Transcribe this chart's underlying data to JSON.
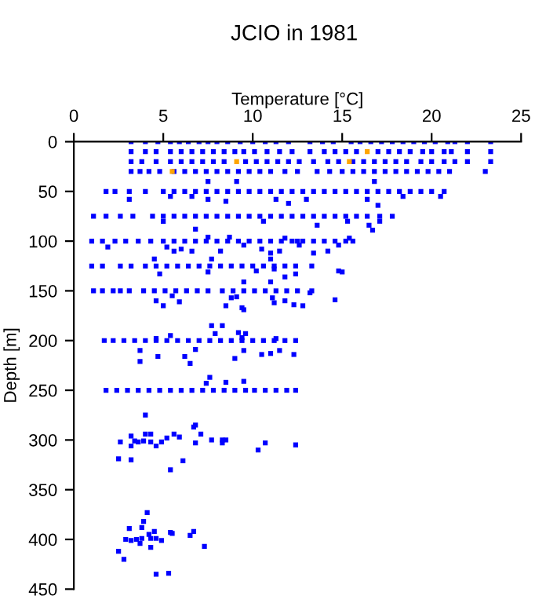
{
  "chart_data": {
    "type": "scatter",
    "title": "JCIO in 1981",
    "xlabel": "Temperature [°C]",
    "ylabel": "Depth [m]",
    "xlim": [
      0,
      25
    ],
    "xticks": [
      0,
      5,
      10,
      15,
      20,
      25
    ],
    "ylim": [
      450,
      0
    ],
    "yticks": [
      0,
      50,
      100,
      150,
      200,
      250,
      300,
      350,
      400,
      450
    ],
    "grid": false,
    "marker": "square",
    "series": [
      {
        "color": "#0000ff",
        "x": [
          3.2,
          4.0,
          4.7,
          5.4,
          5.9,
          6.4,
          7.0,
          7.5,
          8.0,
          8.6,
          9.3,
          10.0,
          10.7,
          11.3,
          12.0,
          13.2,
          13.9,
          14.5,
          15.5,
          16.0,
          16.6,
          17.2,
          17.8,
          18.4,
          19.0,
          19.6,
          20.2,
          20.9,
          21.3,
          22.0,
          23.3,
          3.2,
          4.0,
          4.6,
          5.4,
          6.0,
          6.6,
          7.2,
          7.8,
          8.4,
          9.0,
          9.5,
          10.1,
          10.8,
          11.5,
          12.2,
          13.2,
          14.0,
          14.6,
          15.2,
          15.8,
          17.0,
          17.6,
          18.2,
          18.8,
          19.5,
          20.0,
          20.7,
          21.1,
          22.0,
          23.3,
          3.2,
          3.8,
          4.6,
          5.4,
          6.0,
          6.6,
          7.2,
          7.8,
          8.4,
          9.6,
          10.2,
          10.8,
          11.4,
          12.0,
          12.6,
          13.4,
          14.2,
          14.8,
          15.6,
          16.2,
          16.8,
          17.4,
          18.0,
          18.6,
          19.4,
          20.0,
          20.7,
          21.3,
          22.0,
          23.3,
          3.2,
          3.7,
          4.2,
          4.8,
          5.6,
          6.2,
          6.8,
          7.4,
          8.0,
          8.6,
          9.2,
          9.8,
          10.4,
          11.0,
          11.8,
          12.5,
          13.6,
          14.3,
          15.0,
          15.6,
          16.2,
          16.8,
          17.4,
          18.0,
          18.6,
          19.2,
          19.8,
          20.4,
          21.0,
          23.0,
          7.5,
          9.1,
          16.8,
          1.8,
          2.3,
          3.1,
          4.0,
          5.0,
          5.6,
          6.2,
          6.8,
          7.4,
          8.0,
          8.6,
          9.2,
          9.8,
          10.4,
          11.0,
          11.6,
          12.2,
          12.8,
          13.4,
          14.0,
          14.6,
          15.2,
          15.8,
          16.4,
          17.0,
          17.6,
          18.2,
          18.8,
          19.4,
          20.0,
          20.7,
          3.1,
          5.4,
          6.6,
          8.5,
          7.5,
          11.3,
          13.0,
          12.0,
          16.4,
          17.0,
          18.4,
          20.5,
          1.1,
          1.8,
          2.6,
          3.3,
          4.4,
          5.0,
          5.6,
          6.2,
          6.8,
          7.4,
          8.0,
          8.6,
          9.2,
          9.8,
          10.4,
          11.0,
          11.6,
          12.2,
          12.8,
          13.4,
          14.0,
          14.6,
          15.2,
          15.8,
          16.4,
          17.1,
          17.8,
          5.0,
          6.8,
          10.6,
          13.6,
          15.3,
          16.5,
          16.7,
          17.1,
          1.0,
          1.6,
          2.3,
          2.9,
          3.6,
          4.3,
          5.0,
          5.6,
          6.2,
          6.8,
          7.4,
          8.0,
          8.6,
          9.2,
          9.8,
          10.4,
          11.0,
          11.6,
          12.2,
          12.8,
          13.4,
          14.0,
          14.6,
          15.2,
          15.6,
          1.9,
          5.2,
          5.6,
          6.0,
          6.6,
          8.2,
          9.5,
          10.5,
          11.0,
          11.5,
          12.6,
          13.4,
          14.2,
          14.8,
          4.5,
          7.5,
          8.7,
          11.8,
          12.5,
          15.4,
          1.0,
          1.6,
          2.6,
          3.2,
          4.0,
          4.6,
          5.2,
          5.8,
          6.4,
          7.0,
          7.6,
          8.2,
          8.8,
          9.4,
          10.0,
          10.6,
          11.2,
          11.8,
          12.4,
          13.3,
          4.8,
          7.5,
          10.2,
          11.2,
          11.8,
          14.8,
          7.7,
          11.0,
          1.1,
          1.6,
          2.2,
          2.6,
          3.1,
          3.9,
          4.5,
          5.1,
          5.7,
          6.3,
          6.9,
          7.5,
          8.3,
          8.9,
          9.5,
          10.1,
          10.7,
          11.3,
          11.9,
          12.5,
          13.3,
          4.6,
          5.0,
          5.5,
          5.9,
          8.5,
          8.8,
          9.1,
          9.4,
          9.5,
          11.1,
          11.2,
          11.8,
          12.3,
          12.8,
          13.2,
          14.6,
          15.0,
          9.5,
          11.0,
          12.4,
          1.7,
          2.2,
          2.8,
          3.4,
          4.0,
          4.6,
          5.2,
          5.8,
          6.4,
          7.0,
          7.6,
          8.2,
          8.8,
          9.4,
          10.0,
          10.6,
          11.2,
          11.8,
          12.4,
          7.7,
          8.3,
          5.4,
          4.6,
          7.9,
          9.2,
          9.6,
          9.4,
          3.7,
          3.7,
          4.7,
          6.2,
          6.5,
          9.0,
          9.5,
          10.5,
          11.0,
          11.5,
          12.3,
          6.8,
          11.3,
          1.8,
          2.4,
          3.0,
          3.6,
          4.2,
          4.8,
          5.4,
          6.0,
          6.6,
          7.2,
          7.8,
          8.4,
          9.0,
          9.6,
          10.1,
          10.7,
          11.3,
          11.9,
          12.4,
          7.4,
          7.6,
          8.5,
          9.5,
          4.0,
          6.7,
          2.6,
          2.5,
          3.2,
          3.2,
          3.2,
          3.4,
          3.6,
          3.9,
          4.0,
          4.3,
          4.3,
          4.6,
          4.9,
          5.2,
          5.4,
          5.6,
          5.9,
          6.1,
          6.8,
          6.8,
          7.1,
          7.7,
          8.3,
          8.5,
          8.3,
          10.3,
          10.7,
          12.4,
          2.5,
          2.8,
          2.9,
          3.1,
          3.2,
          3.5,
          3.7,
          3.8,
          3.8,
          3.9,
          4.1,
          4.2,
          4.3,
          4.3,
          4.5,
          4.6,
          4.9,
          5.4,
          5.5,
          4.6,
          5.3,
          6.5,
          6.7,
          7.3
        ],
        "values": [
          0,
          0,
          0,
          0,
          0,
          0,
          0,
          0,
          0,
          0,
          0,
          0,
          0,
          0,
          0,
          0,
          0,
          0,
          0,
          0,
          0,
          0,
          0,
          0,
          0,
          0,
          0,
          0,
          0,
          0,
          0,
          10,
          10,
          10,
          10,
          10,
          10,
          10,
          10,
          10,
          10,
          10,
          10,
          10,
          10,
          10,
          10,
          10,
          10,
          10,
          10,
          10,
          10,
          10,
          10,
          10,
          10,
          10,
          10,
          10,
          10,
          20,
          20,
          20,
          20,
          20,
          20,
          20,
          20,
          20,
          20,
          20,
          20,
          20,
          20,
          20,
          20,
          20,
          20,
          20,
          20,
          20,
          20,
          20,
          20,
          20,
          20,
          20,
          20,
          20,
          20,
          30,
          30,
          30,
          30,
          30,
          30,
          30,
          30,
          30,
          30,
          30,
          30,
          30,
          30,
          30,
          30,
          30,
          30,
          30,
          30,
          30,
          30,
          30,
          30,
          30,
          30,
          30,
          30,
          30,
          30,
          40,
          40,
          40,
          50,
          50,
          50,
          50,
          50,
          50,
          50,
          50,
          50,
          50,
          50,
          50,
          50,
          50,
          50,
          50,
          50,
          50,
          50,
          50,
          50,
          50,
          50,
          50,
          50,
          50,
          50,
          50,
          50,
          50,
          50,
          58,
          55,
          55,
          60,
          58,
          58,
          58,
          62,
          58,
          64,
          55,
          55,
          75,
          75,
          75,
          75,
          75,
          75,
          75,
          75,
          75,
          75,
          75,
          75,
          75,
          75,
          75,
          75,
          75,
          75,
          75,
          75,
          75,
          75,
          75,
          75,
          75,
          75,
          75,
          80,
          88,
          80,
          84,
          80,
          84,
          89,
          80,
          100,
          100,
          100,
          100,
          100,
          100,
          100,
          100,
          100,
          100,
          100,
          100,
          100,
          100,
          100,
          100,
          100,
          100,
          100,
          100,
          100,
          100,
          100,
          100,
          100,
          106,
          106,
          110,
          108,
          110,
          110,
          104,
          108,
          112,
          110,
          104,
          112,
          110,
          104,
          118,
          96,
          96,
          97,
          100,
          97,
          125,
          125,
          125,
          125,
          125,
          125,
          125,
          125,
          125,
          125,
          125,
          125,
          125,
          125,
          125,
          125,
          125,
          125,
          125,
          125,
          133,
          131,
          130,
          128,
          136,
          130,
          118,
          118,
          150,
          150,
          150,
          150,
          150,
          150,
          150,
          150,
          150,
          150,
          150,
          150,
          150,
          150,
          150,
          150,
          150,
          150,
          150,
          150,
          150,
          160,
          165,
          155,
          161,
          165,
          157,
          156,
          167,
          169,
          157,
          162,
          160,
          164,
          165,
          152,
          159,
          131,
          141,
          141,
          133,
          200,
          200,
          200,
          200,
          200,
          200,
          200,
          200,
          200,
          200,
          200,
          200,
          200,
          200,
          200,
          200,
          200,
          200,
          200,
          185,
          185,
          195,
          198,
          193,
          192,
          193,
          197,
          210,
          221,
          216,
          216,
          223,
          218,
          210,
          214,
          213,
          210,
          214,
          209,
          198,
          250,
          250,
          250,
          250,
          250,
          250,
          250,
          250,
          250,
          250,
          250,
          250,
          250,
          250,
          250,
          250,
          250,
          250,
          250,
          243,
          237,
          242,
          241,
          275,
          287,
          302,
          319,
          296,
          306,
          320,
          301,
          302,
          301,
          294,
          302,
          294,
          306,
          302,
          298,
          330,
          294,
          297,
          321,
          303,
          285,
          294,
          300,
          300,
          300,
          303,
          310,
          303,
          305,
          412,
          420,
          400,
          389,
          401,
          400,
          404,
          399,
          388,
          382,
          373,
          395,
          399,
          408,
          392,
          399,
          401,
          393,
          394,
          435,
          434,
          396,
          392,
          407
        ]
      },
      {
        "color": "#ffa500",
        "x": [
          16.4,
          9.1,
          15.4,
          5.5
        ],
        "values": [
          10,
          20,
          20,
          30
        ]
      }
    ]
  }
}
